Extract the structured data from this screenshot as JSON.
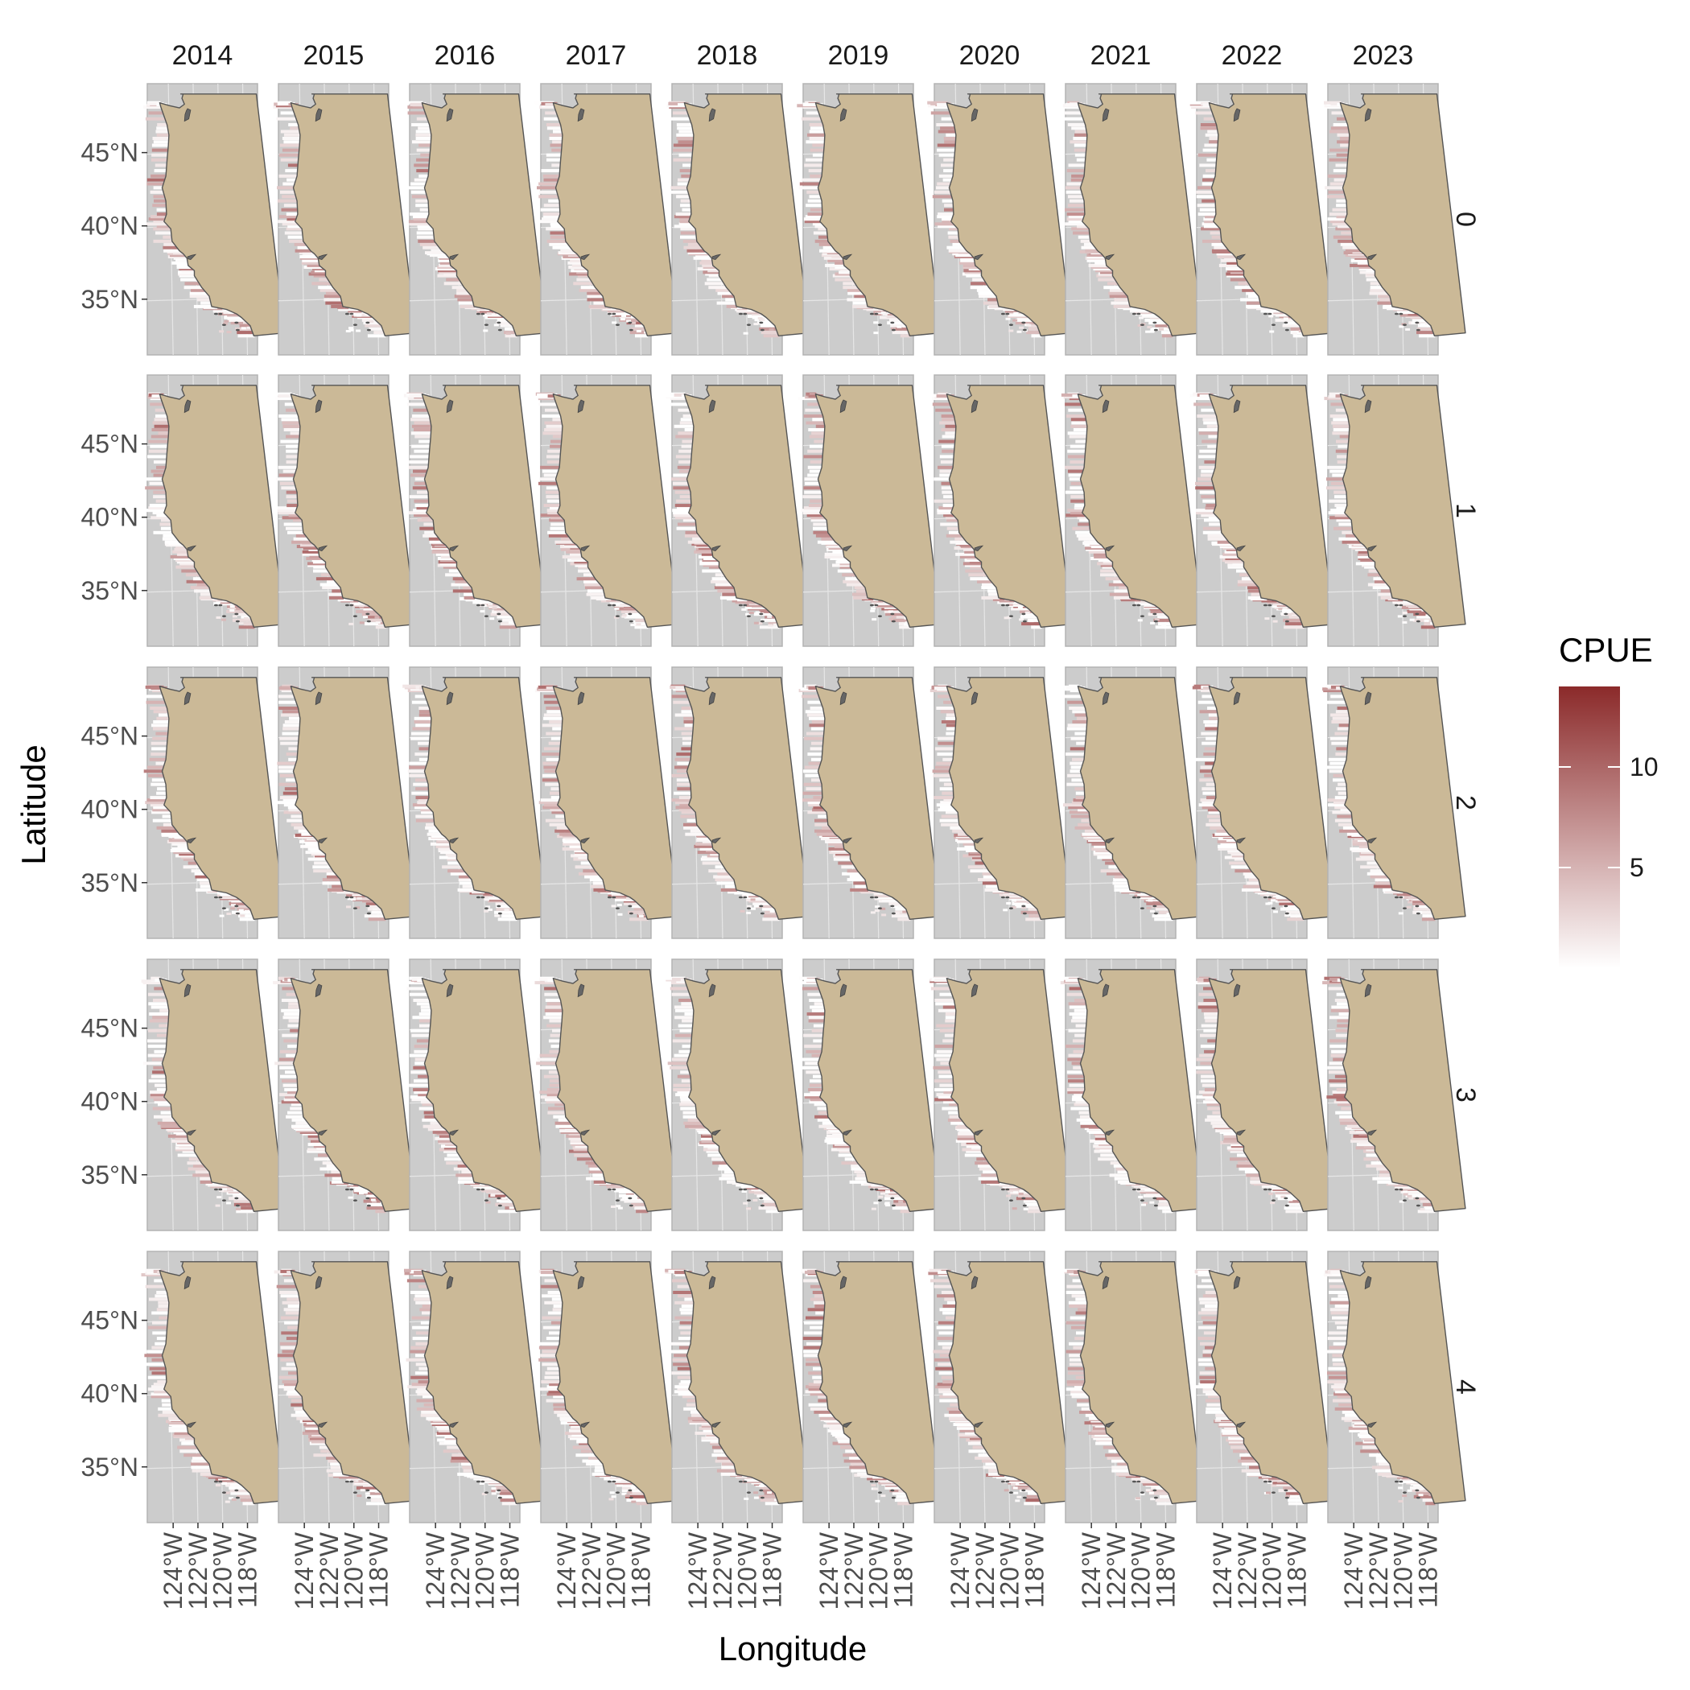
{
  "chart_data": {
    "type": "heatmap",
    "kind": "faceted-map",
    "xlabel": "Longitude",
    "ylabel": "Latitude",
    "column_facets": [
      "2014",
      "2015",
      "2016",
      "2017",
      "2018",
      "2019",
      "2020",
      "2021",
      "2022",
      "2023"
    ],
    "row_facets": [
      "0",
      "1",
      "2",
      "3",
      "4"
    ],
    "x_tick_labels": [
      "124°W",
      "122°W",
      "120°W",
      "118°W"
    ],
    "y_tick_labels": [
      "45°N",
      "40°N",
      "35°N"
    ],
    "x_ticks": [
      -124,
      -122,
      -120,
      -118
    ],
    "y_ticks": [
      45,
      40,
      35
    ],
    "xlim": [
      -125.7,
      -116.8
    ],
    "ylim": [
      31.2,
      49.7
    ],
    "grid": true,
    "legend": {
      "title": "CPUE",
      "placement": "right",
      "tick_labels": [
        "10",
        "5"
      ],
      "ticks": [
        10,
        5
      ],
      "range": [
        0,
        14
      ]
    },
    "colors": {
      "panel_background": "#cccccc",
      "land": "#cbb997",
      "land_outline": "#555555",
      "cpue_low": "#ffffff",
      "cpue_high": "#8b2a2a",
      "gridline": "#e6e6e6"
    }
  }
}
